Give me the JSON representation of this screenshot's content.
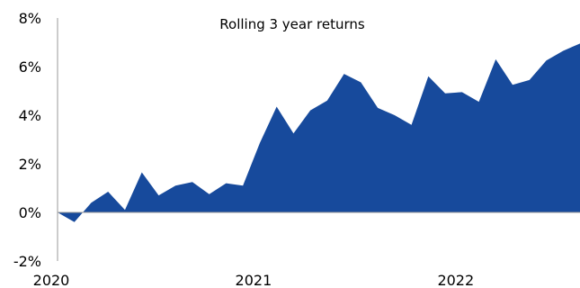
{
  "chart_data": {
    "type": "area",
    "title": "Rolling 3 year returns",
    "xlabel": "",
    "ylabel": "",
    "x_tick_labels": [
      "2020",
      "2021",
      "2022"
    ],
    "y_tick_labels": [
      "-2%",
      "0%",
      "2%",
      "4%",
      "6%",
      "8%"
    ],
    "y_ticks": [
      -2,
      0,
      2,
      4,
      6,
      8
    ],
    "ylim": [
      -2,
      8
    ],
    "grid": false,
    "legend": "none",
    "series": [
      {
        "color": "#174a9c",
        "values": [
          0.0,
          -0.4,
          0.4,
          0.85,
          0.1,
          1.65,
          0.7,
          1.1,
          1.25,
          0.75,
          1.2,
          1.1,
          2.85,
          4.35,
          3.25,
          4.2,
          4.6,
          5.7,
          5.35,
          4.3,
          4.0,
          3.6,
          5.6,
          4.9,
          4.95,
          4.55,
          6.3,
          5.25,
          5.45,
          6.25,
          6.65,
          6.95
        ]
      }
    ],
    "x_start_label": "2020",
    "points_per_year": 12
  }
}
